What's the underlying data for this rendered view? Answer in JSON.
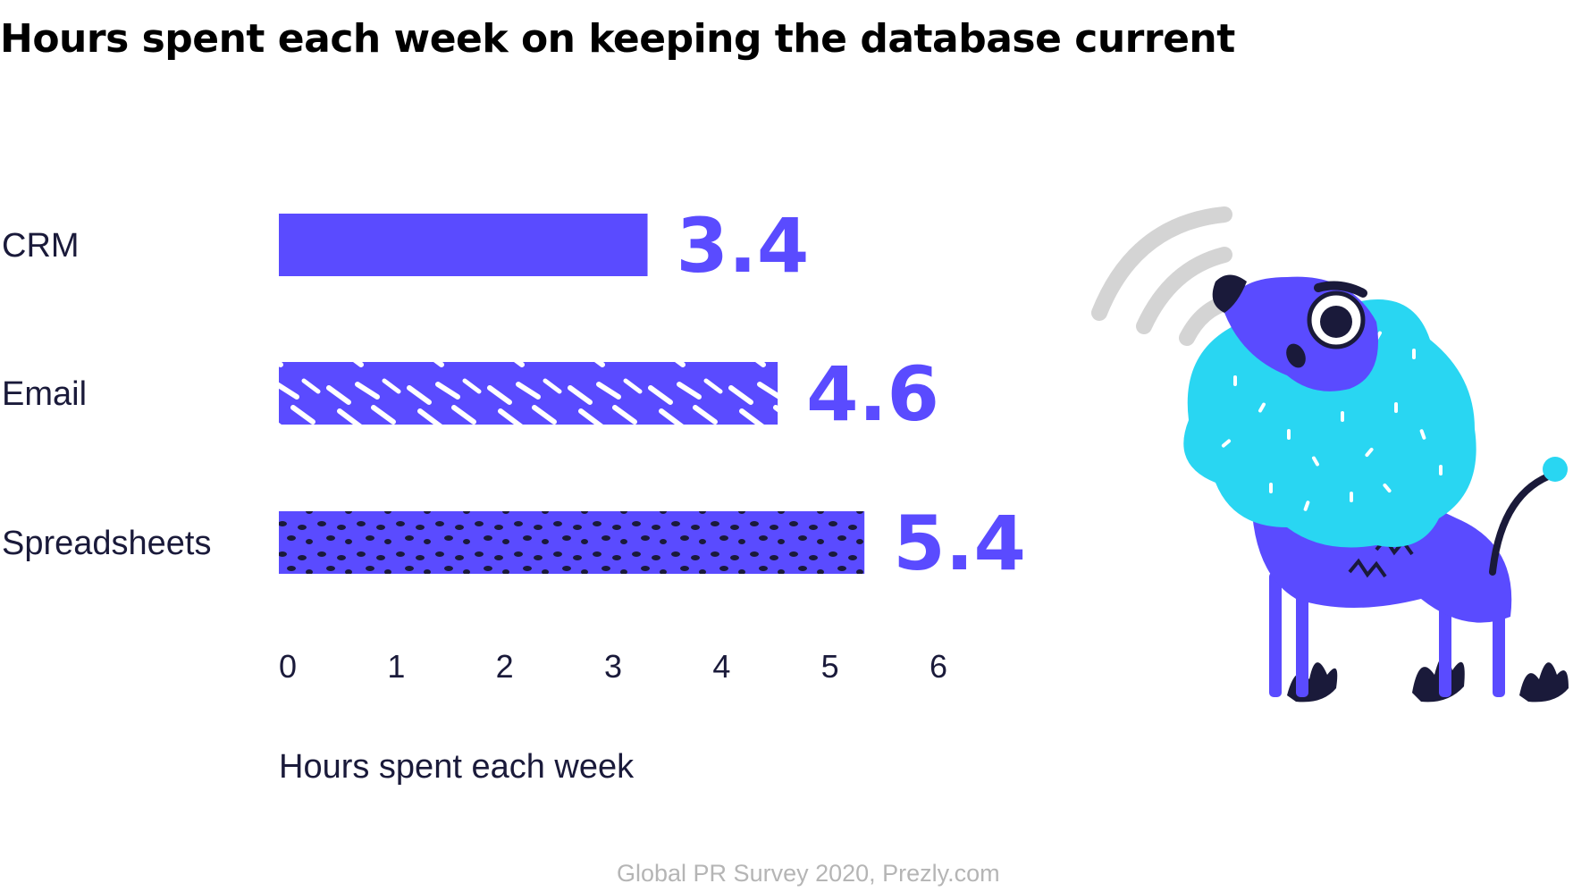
{
  "title": "Hours spent each week on keeping the database current",
  "source": "Global PR Survey 2020, Prezly.com",
  "colors": {
    "bar": "#5a4bff",
    "text": "#1a1a3a",
    "mascot_fur": "#29d6f2",
    "mascot_body": "#5a4bff",
    "signal": "#d4d4d4"
  },
  "chart_data": {
    "type": "bar",
    "orientation": "horizontal",
    "categories": [
      "CRM",
      "Email",
      "Spreadsheets"
    ],
    "values": [
      3.4,
      4.6,
      5.4
    ],
    "value_labels": [
      "3.4",
      "4.6",
      "5.4"
    ],
    "bar_fills": [
      "solid",
      "streaks",
      "dots"
    ],
    "xlabel": "Hours spent each week",
    "xticks": [
      "0",
      "1",
      "2",
      "3",
      "4",
      "5",
      "6"
    ],
    "xlim": [
      0,
      6
    ],
    "grid": false
  }
}
